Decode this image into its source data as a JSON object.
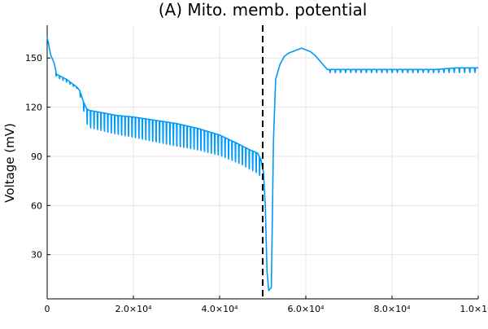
{
  "chart_data": {
    "type": "line",
    "title": "(A) Mito. memb. potential",
    "xlabel": "",
    "ylabel": "Voltage (mV)",
    "xlim": [
      0,
      100000
    ],
    "ylim": [
      3,
      170
    ],
    "grid": true,
    "legend": "none",
    "x_ticks": [
      {
        "value": 0,
        "label": "0"
      },
      {
        "value": 20000,
        "label": "2.0×10⁴"
      },
      {
        "value": 40000,
        "label": "4.0×10⁴"
      },
      {
        "value": 60000,
        "label": "6.0×10⁴"
      },
      {
        "value": 80000,
        "label": "8.0×10⁴"
      },
      {
        "value": 100000,
        "label": "1.0×10⁵"
      }
    ],
    "y_ticks": [
      {
        "value": 30,
        "label": "30"
      },
      {
        "value": 60,
        "label": "60"
      },
      {
        "value": 90,
        "label": "90"
      },
      {
        "value": 120,
        "label": "120"
      },
      {
        "value": 150,
        "label": "150"
      }
    ],
    "vline": {
      "x": 50000,
      "color": "#000000",
      "style": "dashed"
    },
    "series": [
      {
        "color": "#009af9",
        "x": [
          0,
          800,
          1600,
          2200,
          3000,
          4500,
          6000,
          7000,
          7600,
          8200,
          8800,
          9200,
          9800,
          12000,
          16000,
          20000,
          25000,
          30000,
          35000,
          40000,
          44000,
          47000,
          48800,
          49600,
          50200,
          50600,
          51000,
          51400,
          52000,
          52500,
          53000,
          54000,
          55000,
          56000,
          58000,
          59000,
          60000,
          61000,
          62000,
          63000,
          64000,
          65000,
          70000,
          75000,
          80000,
          85000,
          90000,
          95000,
          100000
        ],
        "y": [
          163,
          152,
          147,
          140,
          139,
          137,
          134,
          132,
          130,
          125,
          121,
          119,
          118,
          117,
          115,
          114,
          112,
          110,
          107,
          103,
          98,
          94,
          92,
          88,
          80,
          60,
          20,
          8,
          10,
          100,
          137,
          146,
          151,
          153,
          155,
          156,
          155,
          154,
          152,
          149,
          146,
          143,
          143,
          143,
          143,
          143,
          143,
          144,
          144
        ]
      }
    ],
    "oscillation": {
      "x_start": 2000,
      "x_end": 49500,
      "period": 800,
      "dip_x": [
        2000,
        7000,
        7600,
        9500,
        15000,
        20000,
        25000,
        30000,
        35000,
        40000,
        45000,
        49500
      ],
      "dip_y": [
        138,
        131,
        126,
        103,
        99,
        96,
        93,
        90,
        88,
        85,
        80,
        73
      ]
    },
    "post_oscillation": {
      "x_start": 65500,
      "x_end": 100000,
      "period": 1200,
      "dip_y": 141
    }
  }
}
